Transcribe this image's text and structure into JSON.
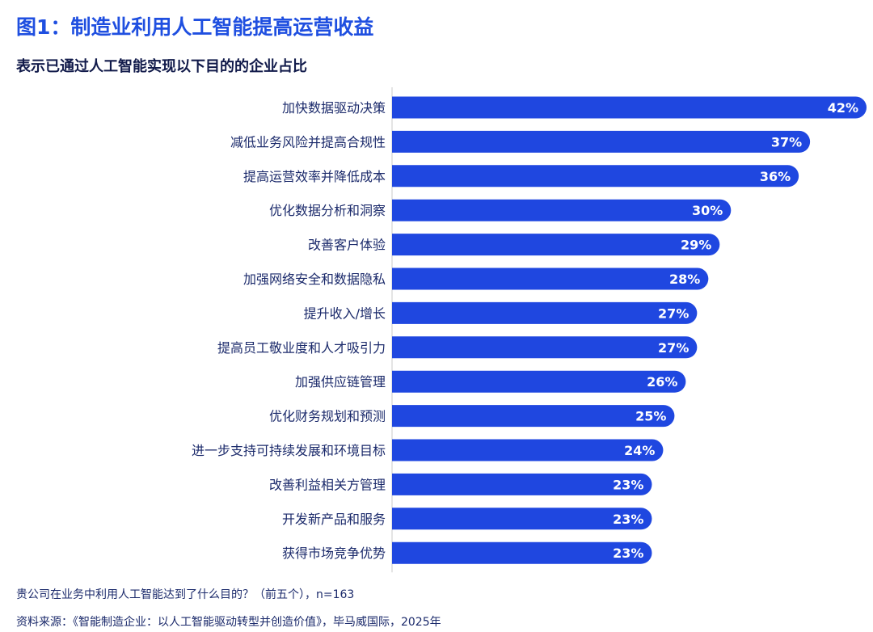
{
  "colors": {
    "title": "#1f4fe0",
    "subtitle": "#111a4a",
    "bar": "#1f47e0",
    "label": "#1b2a6b",
    "value": "#ffffff",
    "axis": "#c8c8c8"
  },
  "title": "图1：制造业利用人工智能提高运营收益",
  "subtitle": "表示已通过人工智能实现以下目的的企业占比",
  "footnote": "贵公司在业务中利用人工智能达到了什么目的？（前五个），n=163",
  "source": "资料来源：《智能制造企业：以人工智能驱动转型并创造价值》，毕马威国际，2025年",
  "chart_data": {
    "type": "bar",
    "orientation": "horizontal",
    "title": "图1：制造业利用人工智能提高运营收益",
    "subtitle": "表示已通过人工智能实现以下目的的企业占比",
    "value_suffix": "%",
    "xlim": [
      0,
      42
    ],
    "grid": false,
    "categories": [
      "加快数据驱动决策",
      "减低业务风险并提高合规性",
      "提高运营效率并降低成本",
      "优化数据分析和洞察",
      "改善客户体验",
      "加强网络安全和数据隐私",
      "提升收入/增长",
      "提高员工敬业度和人才吸引力",
      "加强供应链管理",
      "优化财务规划和预测",
      "进一步支持可持续发展和环境目标",
      "改善利益相关方管理",
      "开发新产品和服务",
      "获得市场竞争优势"
    ],
    "values": [
      42,
      37,
      36,
      30,
      29,
      28,
      27,
      27,
      26,
      25,
      24,
      23,
      23,
      23
    ]
  }
}
